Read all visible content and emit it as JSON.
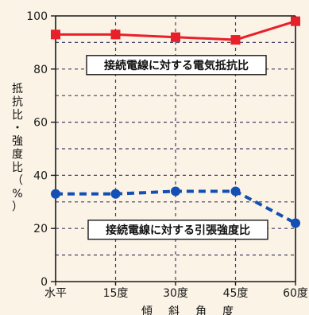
{
  "chart_data": {
    "type": "line",
    "categories": [
      "水平",
      "15度",
      "30度",
      "45度",
      "60度"
    ],
    "ylim": [
      0,
      100
    ],
    "yticks": [
      0,
      20,
      40,
      60,
      80,
      100
    ],
    "ylabel": "抵抗比・強度比（%）",
    "ylabel_chars": [
      "抵",
      "抗",
      "比",
      "・",
      "強",
      "度",
      "比",
      "（",
      "%",
      "）"
    ],
    "xlabel": "傾斜角度",
    "xlabel_chars": [
      "傾",
      "斜",
      "角",
      "度"
    ],
    "grid": true,
    "series": [
      {
        "name": "接続電線に対する電気抵抗比",
        "values": [
          93,
          93,
          92,
          91,
          98
        ],
        "color": "#e8202a",
        "marker": "square",
        "line_style": "solid"
      },
      {
        "name": "接続電線に対する引張強度比",
        "values": [
          33,
          33,
          34,
          34,
          22
        ],
        "color": "#1450b4",
        "marker": "circle",
        "line_style": "dashed"
      }
    ],
    "annotations": [
      "接続電線に対する電気抵抗比",
      "接続電線に対する引張強度比"
    ],
    "colors": {
      "background": "#fbf3e6",
      "grid": "#3f3f6a",
      "axis": "#1a1a1a"
    }
  }
}
